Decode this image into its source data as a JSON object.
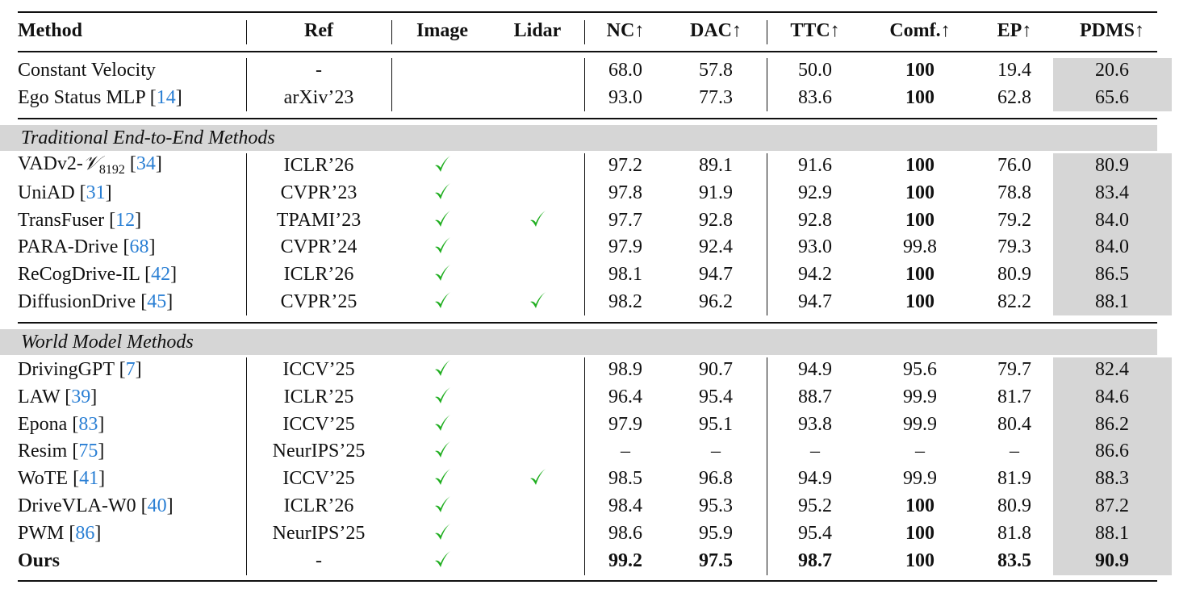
{
  "table": {
    "header": [
      "Method",
      "Ref",
      "Image",
      "Lidar",
      "NC↑",
      "DAC↑",
      "TTC↑",
      "Comf.↑",
      "EP↑",
      "PDMS↑"
    ],
    "cite_brackets": [
      "[",
      "]"
    ],
    "blocks": [
      {
        "rows": [
          {
            "method": "Constant Velocity",
            "ref": "-",
            "image": false,
            "lidar": false,
            "metrics": [
              "68.0",
              "57.8",
              "50.0",
              "100",
              "19.4",
              "20.6"
            ],
            "bold": [
              3
            ]
          },
          {
            "method": "Ego Status MLP",
            "cite": "14",
            "ref": "arXiv’23",
            "image": false,
            "lidar": false,
            "metrics": [
              "93.0",
              "77.3",
              "83.6",
              "100",
              "62.8",
              "65.6"
            ],
            "bold": [
              3
            ]
          }
        ]
      },
      {
        "title": "Traditional End-to-End Methods",
        "rows": [
          {
            "method": "VADv2-",
            "symbol": "𝒱",
            "subscript": "8192",
            "cite": "34",
            "ref": "ICLR’26",
            "image": true,
            "lidar": false,
            "metrics": [
              "97.2",
              "89.1",
              "91.6",
              "100",
              "76.0",
              "80.9"
            ],
            "bold": [
              3
            ]
          },
          {
            "method": "UniAD",
            "cite": "31",
            "ref": "CVPR’23",
            "image": true,
            "lidar": false,
            "metrics": [
              "97.8",
              "91.9",
              "92.9",
              "100",
              "78.8",
              "83.4"
            ],
            "bold": [
              3
            ]
          },
          {
            "method": "TransFuser",
            "cite": "12",
            "ref": "TPAMI’23",
            "image": true,
            "lidar": true,
            "metrics": [
              "97.7",
              "92.8",
              "92.8",
              "100",
              "79.2",
              "84.0"
            ],
            "bold": [
              3
            ]
          },
          {
            "method": "PARA-Drive",
            "cite": "68",
            "ref": "CVPR’24",
            "image": true,
            "lidar": false,
            "metrics": [
              "97.9",
              "92.4",
              "93.0",
              "99.8",
              "79.3",
              "84.0"
            ],
            "bold": []
          },
          {
            "method": "ReCogDrive-IL",
            "cite": "42",
            "ref": "ICLR’26",
            "image": true,
            "lidar": false,
            "metrics": [
              "98.1",
              "94.7",
              "94.2",
              "100",
              "80.9",
              "86.5"
            ],
            "bold": [
              3
            ]
          },
          {
            "method": "DiffusionDrive",
            "cite": "45",
            "ref": "CVPR’25",
            "image": true,
            "lidar": true,
            "metrics": [
              "98.2",
              "96.2",
              "94.7",
              "100",
              "82.2",
              "88.1"
            ],
            "bold": [
              3
            ]
          }
        ]
      },
      {
        "title": "World Model Methods",
        "rows": [
          {
            "method": "DrivingGPT",
            "cite": "7",
            "ref": "ICCV’25",
            "image": true,
            "lidar": false,
            "metrics": [
              "98.9",
              "90.7",
              "94.9",
              "95.6",
              "79.7",
              "82.4"
            ],
            "bold": []
          },
          {
            "method": "LAW",
            "cite": "39",
            "ref": "ICLR’25",
            "image": true,
            "lidar": false,
            "metrics": [
              "96.4",
              "95.4",
              "88.7",
              "99.9",
              "81.7",
              "84.6"
            ],
            "bold": []
          },
          {
            "method": "Epona",
            "cite": "83",
            "ref": "ICCV’25",
            "image": true,
            "lidar": false,
            "metrics": [
              "97.9",
              "95.1",
              "93.8",
              "99.9",
              "80.4",
              "86.2"
            ],
            "bold": []
          },
          {
            "method": "Resim",
            "cite": "75",
            "ref": "NeurIPS’25",
            "image": true,
            "lidar": false,
            "metrics": [
              "–",
              "–",
              "–",
              "–",
              "–",
              "86.6"
            ],
            "bold": []
          },
          {
            "method": "WoTE",
            "cite": "41",
            "ref": "ICCV’25",
            "image": true,
            "lidar": true,
            "metrics": [
              "98.5",
              "96.8",
              "94.9",
              "99.9",
              "81.9",
              "88.3"
            ],
            "bold": []
          },
          {
            "method": "DriveVLA-W0",
            "cite": "40",
            "ref": "ICLR’26",
            "image": true,
            "lidar": false,
            "metrics": [
              "98.4",
              "95.3",
              "95.2",
              "100",
              "80.9",
              "87.2"
            ],
            "bold": [
              3
            ]
          },
          {
            "method": "PWM",
            "cite": "86",
            "ref": "NeurIPS’25",
            "image": true,
            "lidar": false,
            "metrics": [
              "98.6",
              "95.9",
              "95.4",
              "100",
              "81.8",
              "88.1"
            ],
            "bold": [
              3
            ]
          },
          {
            "method": "Ours",
            "method_bold": true,
            "ref": "-",
            "image": true,
            "lidar": false,
            "metrics": [
              "99.2",
              "97.5",
              "98.7",
              "100",
              "83.5",
              "90.9"
            ],
            "bold": [
              0,
              1,
              2,
              3,
              4,
              5
            ]
          }
        ]
      }
    ]
  }
}
